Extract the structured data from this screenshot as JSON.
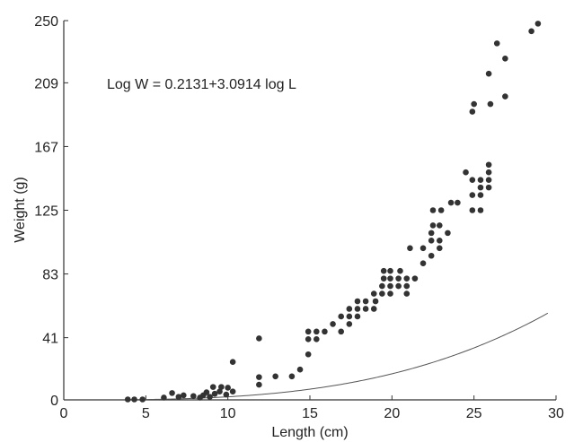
{
  "chart_data": {
    "type": "scatter",
    "xlabel": "Length (cm)",
    "ylabel": "Weight (g)",
    "xlim": [
      0,
      30
    ],
    "ylim": [
      0,
      250
    ],
    "xticks": [
      0,
      5,
      10,
      15,
      20,
      25,
      30
    ],
    "yticks": [
      0,
      41,
      83,
      125,
      167,
      209,
      250
    ],
    "xtick_labels": [
      "0",
      "5",
      "10",
      "15",
      "20",
      "25",
      "30"
    ],
    "ytick_labels": [
      "0",
      "41",
      "83",
      "125",
      "167",
      "209",
      "250"
    ],
    "annotation": "Log W  = 0.2131+3.0914 log L",
    "grid": false,
    "colors": {
      "points": "#333333",
      "curve": "#555555",
      "axes": "#333333"
    },
    "fit": {
      "intercept_log": 0.2131,
      "slope": 3.0914,
      "x_range": [
        3.8,
        29.5
      ]
    },
    "points": [
      {
        "x": 3.9,
        "y": 0.3
      },
      {
        "x": 4.3,
        "y": 0.3
      },
      {
        "x": 4.8,
        "y": 0.3
      },
      {
        "x": 6.1,
        "y": 1.5
      },
      {
        "x": 6.6,
        "y": 4.5
      },
      {
        "x": 7.0,
        "y": 2.0
      },
      {
        "x": 7.3,
        "y": 3.0
      },
      {
        "x": 7.9,
        "y": 2.5
      },
      {
        "x": 8.3,
        "y": 1.5
      },
      {
        "x": 8.5,
        "y": 3.0
      },
      {
        "x": 8.7,
        "y": 5.0
      },
      {
        "x": 8.9,
        "y": 2.0
      },
      {
        "x": 9.1,
        "y": 8.5
      },
      {
        "x": 9.2,
        "y": 4.0
      },
      {
        "x": 9.5,
        "y": 5.5
      },
      {
        "x": 9.6,
        "y": 8.5
      },
      {
        "x": 9.9,
        "y": 3.5
      },
      {
        "x": 10.0,
        "y": 8.0
      },
      {
        "x": 10.3,
        "y": 5.5
      },
      {
        "x": 10.3,
        "y": 25.0
      },
      {
        "x": 11.9,
        "y": 40.5
      },
      {
        "x": 11.9,
        "y": 15.0
      },
      {
        "x": 11.9,
        "y": 10.0
      },
      {
        "x": 12.9,
        "y": 15.5
      },
      {
        "x": 13.9,
        "y": 15.5
      },
      {
        "x": 14.4,
        "y": 20.0
      },
      {
        "x": 14.9,
        "y": 30.0
      },
      {
        "x": 14.9,
        "y": 40.0
      },
      {
        "x": 14.9,
        "y": 45.0
      },
      {
        "x": 15.4,
        "y": 40.0
      },
      {
        "x": 15.4,
        "y": 45.0
      },
      {
        "x": 15.9,
        "y": 45.0
      },
      {
        "x": 16.4,
        "y": 50.0
      },
      {
        "x": 16.9,
        "y": 45.0
      },
      {
        "x": 16.9,
        "y": 55.0
      },
      {
        "x": 17.4,
        "y": 50.0
      },
      {
        "x": 17.4,
        "y": 55.0
      },
      {
        "x": 17.4,
        "y": 60.0
      },
      {
        "x": 17.9,
        "y": 55.0
      },
      {
        "x": 17.9,
        "y": 60.0
      },
      {
        "x": 17.9,
        "y": 65.0
      },
      {
        "x": 18.4,
        "y": 60.0
      },
      {
        "x": 18.4,
        "y": 65.0
      },
      {
        "x": 18.9,
        "y": 60.0
      },
      {
        "x": 18.9,
        "y": 70.0
      },
      {
        "x": 19.0,
        "y": 65.0
      },
      {
        "x": 19.4,
        "y": 70.0
      },
      {
        "x": 19.4,
        "y": 75.0
      },
      {
        "x": 19.5,
        "y": 80.0
      },
      {
        "x": 19.5,
        "y": 85.0
      },
      {
        "x": 19.9,
        "y": 70.0
      },
      {
        "x": 19.9,
        "y": 75.0
      },
      {
        "x": 19.9,
        "y": 80.0
      },
      {
        "x": 19.9,
        "y": 85.0
      },
      {
        "x": 20.4,
        "y": 75.0
      },
      {
        "x": 20.4,
        "y": 80.0
      },
      {
        "x": 20.5,
        "y": 85.0
      },
      {
        "x": 20.9,
        "y": 70.0
      },
      {
        "x": 20.9,
        "y": 75.0
      },
      {
        "x": 20.9,
        "y": 80.0
      },
      {
        "x": 21.1,
        "y": 100.0
      },
      {
        "x": 21.4,
        "y": 80.0
      },
      {
        "x": 21.9,
        "y": 90.0
      },
      {
        "x": 21.9,
        "y": 100.0
      },
      {
        "x": 22.4,
        "y": 95.0
      },
      {
        "x": 22.4,
        "y": 105.0
      },
      {
        "x": 22.4,
        "y": 110.0
      },
      {
        "x": 22.5,
        "y": 115.0
      },
      {
        "x": 22.5,
        "y": 125.0
      },
      {
        "x": 22.9,
        "y": 100.0
      },
      {
        "x": 22.9,
        "y": 105.0
      },
      {
        "x": 22.9,
        "y": 115.0
      },
      {
        "x": 23.0,
        "y": 125.0
      },
      {
        "x": 23.4,
        "y": 110.0
      },
      {
        "x": 23.6,
        "y": 130.0
      },
      {
        "x": 24.0,
        "y": 130.0
      },
      {
        "x": 24.5,
        "y": 150.0
      },
      {
        "x": 24.9,
        "y": 125.0
      },
      {
        "x": 24.9,
        "y": 135.0
      },
      {
        "x": 24.9,
        "y": 145.0
      },
      {
        "x": 24.9,
        "y": 190.0
      },
      {
        "x": 25.0,
        "y": 195.0
      },
      {
        "x": 25.4,
        "y": 125.0
      },
      {
        "x": 25.4,
        "y": 135.0
      },
      {
        "x": 25.4,
        "y": 140.0
      },
      {
        "x": 25.4,
        "y": 145.0
      },
      {
        "x": 25.9,
        "y": 140.0
      },
      {
        "x": 25.9,
        "y": 145.0
      },
      {
        "x": 25.9,
        "y": 150.0
      },
      {
        "x": 25.9,
        "y": 155.0
      },
      {
        "x": 25.9,
        "y": 215.0
      },
      {
        "x": 26.0,
        "y": 195.0
      },
      {
        "x": 26.4,
        "y": 235.0
      },
      {
        "x": 26.9,
        "y": 200.0
      },
      {
        "x": 26.9,
        "y": 225.0
      },
      {
        "x": 28.5,
        "y": 243.0
      },
      {
        "x": 28.9,
        "y": 248.0
      }
    ]
  }
}
